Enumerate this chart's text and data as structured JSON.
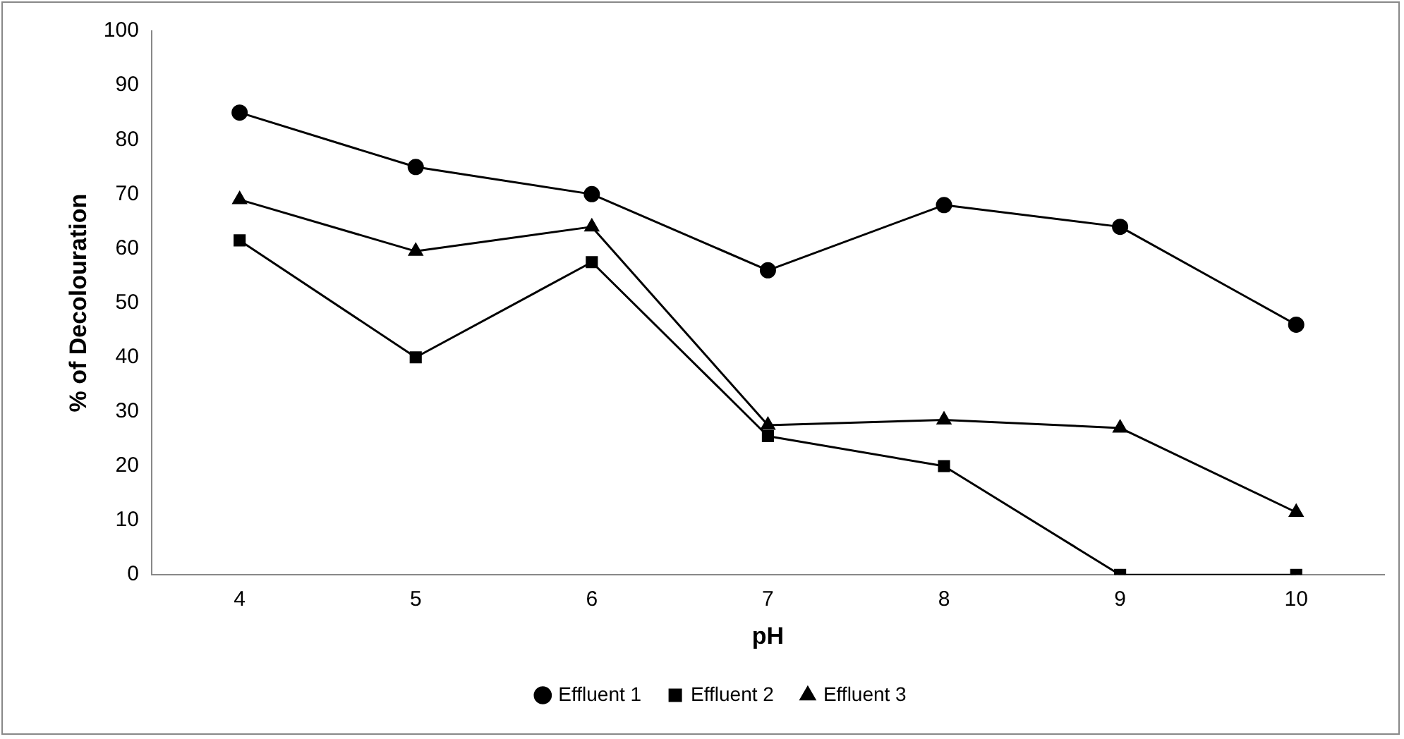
{
  "chart_data": {
    "type": "line",
    "xlabel": "pH",
    "ylabel": "% of Decolouration",
    "categories": [
      "4",
      "5",
      "6",
      "7",
      "8",
      "9",
      "10"
    ],
    "ylim": [
      0,
      100
    ],
    "yticks": [
      0,
      10,
      20,
      30,
      40,
      50,
      60,
      70,
      80,
      90,
      100
    ],
    "grid": false,
    "legend": "bottom",
    "line_style": "solid",
    "series": [
      {
        "name": "Effluent 1",
        "color": "#000000",
        "marker": "circle",
        "values": [
          85,
          75,
          70,
          56,
          68,
          64,
          46
        ]
      },
      {
        "name": "Effluent 2",
        "color": "#000000",
        "marker": "square",
        "values": [
          61.5,
          40,
          57.5,
          25.5,
          20,
          0,
          0
        ]
      },
      {
        "name": "Effluent 3",
        "color": "#000000",
        "marker": "triangle",
        "values": [
          69,
          59.5,
          64,
          27.5,
          28.5,
          27,
          11.5
        ]
      }
    ]
  }
}
